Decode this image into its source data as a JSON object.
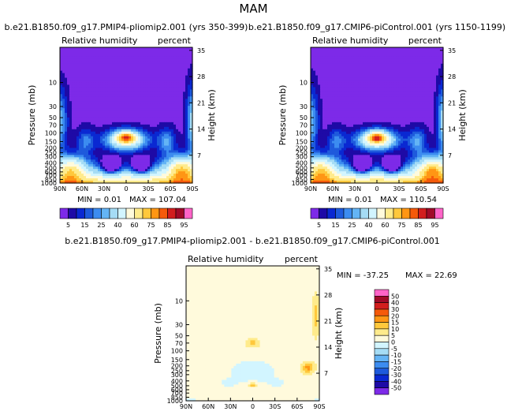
{
  "page_title": "MAM",
  "chart_data": [
    {
      "type": "heatmap",
      "title": "b.e21.B1850.f09_g17.PMIP4-pliomip2.001 (yrs 350-399)",
      "left_label": "Relative humidity",
      "right_label": "percent",
      "ylabel": "Pressure (mb)",
      "y2label": "Height (km)",
      "x_ticks": [
        "90N",
        "60N",
        "30N",
        "0",
        "30S",
        "60S",
        "90S"
      ],
      "pressure_ticks": [
        "10",
        "30",
        "50",
        "70",
        "100",
        "150",
        "200",
        "250",
        "300",
        "400",
        "500",
        "600",
        "700",
        "850",
        "1000"
      ],
      "height_ticks": [
        "35",
        "28",
        "21",
        "14",
        "7"
      ],
      "min_text": "MIN =   0.01",
      "max_text": "MAX = 107.04",
      "colorbar_labels": [
        "5",
        "15",
        "25",
        "40",
        "60",
        "75",
        "85",
        "95"
      ],
      "levels": [
        5,
        10,
        15,
        20,
        25,
        30,
        40,
        50,
        60,
        70,
        75,
        80,
        85,
        90,
        95
      ],
      "colors": [
        "#7d2ae8",
        "#1e0aa6",
        "#0a28d2",
        "#1e5adc",
        "#3c8cf0",
        "#64b4f5",
        "#a5dcf5",
        "#d2f5ff",
        "#fffadc",
        "#ffeb8c",
        "#ffc83c",
        "#ff9614",
        "#f55a0a",
        "#d21e1e",
        "#a00a28",
        "#ff64c8"
      ]
    },
    {
      "type": "heatmap",
      "title": "b.e21.B1850.f09_g17.CMIP6-piControl.001 (yrs 1150-1199)",
      "left_label": "Relative humidity",
      "right_label": "percent",
      "ylabel": "Pressure (mb)",
      "y2label": "Height (km)",
      "x_ticks": [
        "90N",
        "60N",
        "30N",
        "0",
        "30S",
        "60S",
        "90S"
      ],
      "pressure_ticks": [
        "10",
        "30",
        "50",
        "70",
        "100",
        "150",
        "200",
        "250",
        "300",
        "400",
        "500",
        "600",
        "700",
        "850",
        "1000"
      ],
      "height_ticks": [
        "35",
        "28",
        "21",
        "14",
        "7"
      ],
      "min_text": "MIN =   0.01",
      "max_text": "MAX = 110.54",
      "colorbar_labels": [
        "5",
        "15",
        "25",
        "40",
        "60",
        "75",
        "85",
        "95"
      ],
      "levels": [
        5,
        10,
        15,
        20,
        25,
        30,
        40,
        50,
        60,
        70,
        75,
        80,
        85,
        90,
        95
      ],
      "colors": [
        "#7d2ae8",
        "#1e0aa6",
        "#0a28d2",
        "#1e5adc",
        "#3c8cf0",
        "#64b4f5",
        "#a5dcf5",
        "#d2f5ff",
        "#fffadc",
        "#ffeb8c",
        "#ffc83c",
        "#ff9614",
        "#f55a0a",
        "#d21e1e",
        "#a00a28",
        "#ff64c8"
      ]
    },
    {
      "type": "heatmap",
      "title": "b.e21.B1850.f09_g17.PMIP4-pliomip2.001 - b.e21.B1850.f09_g17.CMIP6-piControl.001",
      "left_label": "Relative humidity",
      "right_label": "percent",
      "ylabel": "Pressure (mb)",
      "y2label": "Height (km)",
      "x_ticks": [
        "90N",
        "60N",
        "30N",
        "0",
        "30S",
        "60S",
        "90S"
      ],
      "pressure_ticks": [
        "10",
        "30",
        "50",
        "70",
        "100",
        "150",
        "200",
        "250",
        "300",
        "400",
        "500",
        "600",
        "700",
        "850",
        "1000"
      ],
      "height_ticks": [
        "35",
        "28",
        "21",
        "14",
        "7"
      ],
      "min_text": "MIN = -37.25",
      "max_text": "MAX =  22.69",
      "colorbar_labels": [
        "50",
        "40",
        "30",
        "20",
        "15",
        "10",
        "5",
        "0",
        "-5",
        "-10",
        "-15",
        "-20",
        "-30",
        "-40",
        "-50"
      ],
      "levels": [
        -50,
        -40,
        -30,
        -20,
        -15,
        -10,
        -5,
        0,
        5,
        10,
        15,
        20,
        30,
        40,
        50
      ],
      "colors": [
        "#7d2ae8",
        "#1e0aa6",
        "#0a28d2",
        "#1e5adc",
        "#3c8cf0",
        "#64b4f5",
        "#a5dcf5",
        "#d2f5ff",
        "#fffadc",
        "#ffeb8c",
        "#ffc83c",
        "#ff9614",
        "#f55a0a",
        "#d21e1e",
        "#a00a28",
        "#ff64c8"
      ]
    }
  ]
}
